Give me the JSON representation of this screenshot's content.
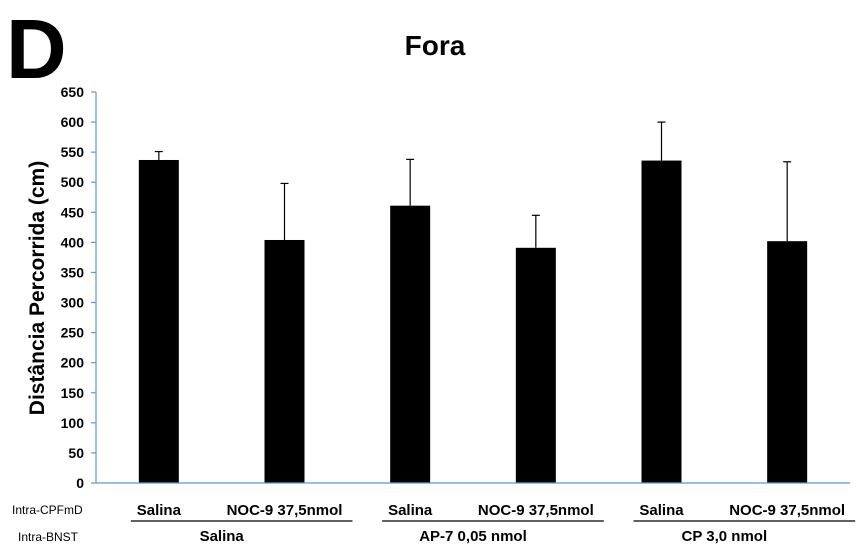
{
  "panel_letter": "D",
  "chart_data": {
    "type": "bar",
    "title": "Fora",
    "xlabel": "",
    "ylabel": "Distância Percorrida (cm)",
    "ylim": [
      0,
      650
    ],
    "yticks": [
      0,
      50,
      100,
      150,
      200,
      250,
      300,
      350,
      400,
      450,
      500,
      550,
      600,
      650
    ],
    "grid": false,
    "error_bars": "upper",
    "bar_color": "#000000",
    "axis_color": "#5b9bd5",
    "row_labels": {
      "cpfmd": "Intra-CPFmD",
      "bnst": "Intra-BNST"
    },
    "categories": [
      "Salina",
      "NOC-9 37,5nmol",
      "Salina",
      "NOC-9 37,5nmol",
      "Salina",
      "NOC-9 37,5nmol"
    ],
    "values": [
      537,
      404,
      461,
      391,
      536,
      402
    ],
    "errors": [
      14,
      94,
      77,
      54,
      64,
      132
    ],
    "groups": [
      {
        "label": "Salina",
        "members": [
          0,
          1
        ]
      },
      {
        "label": "AP-7 0,05 nmol",
        "members": [
          2,
          3
        ]
      },
      {
        "label": "CP 3,0 nmol",
        "members": [
          4,
          5
        ]
      }
    ]
  }
}
